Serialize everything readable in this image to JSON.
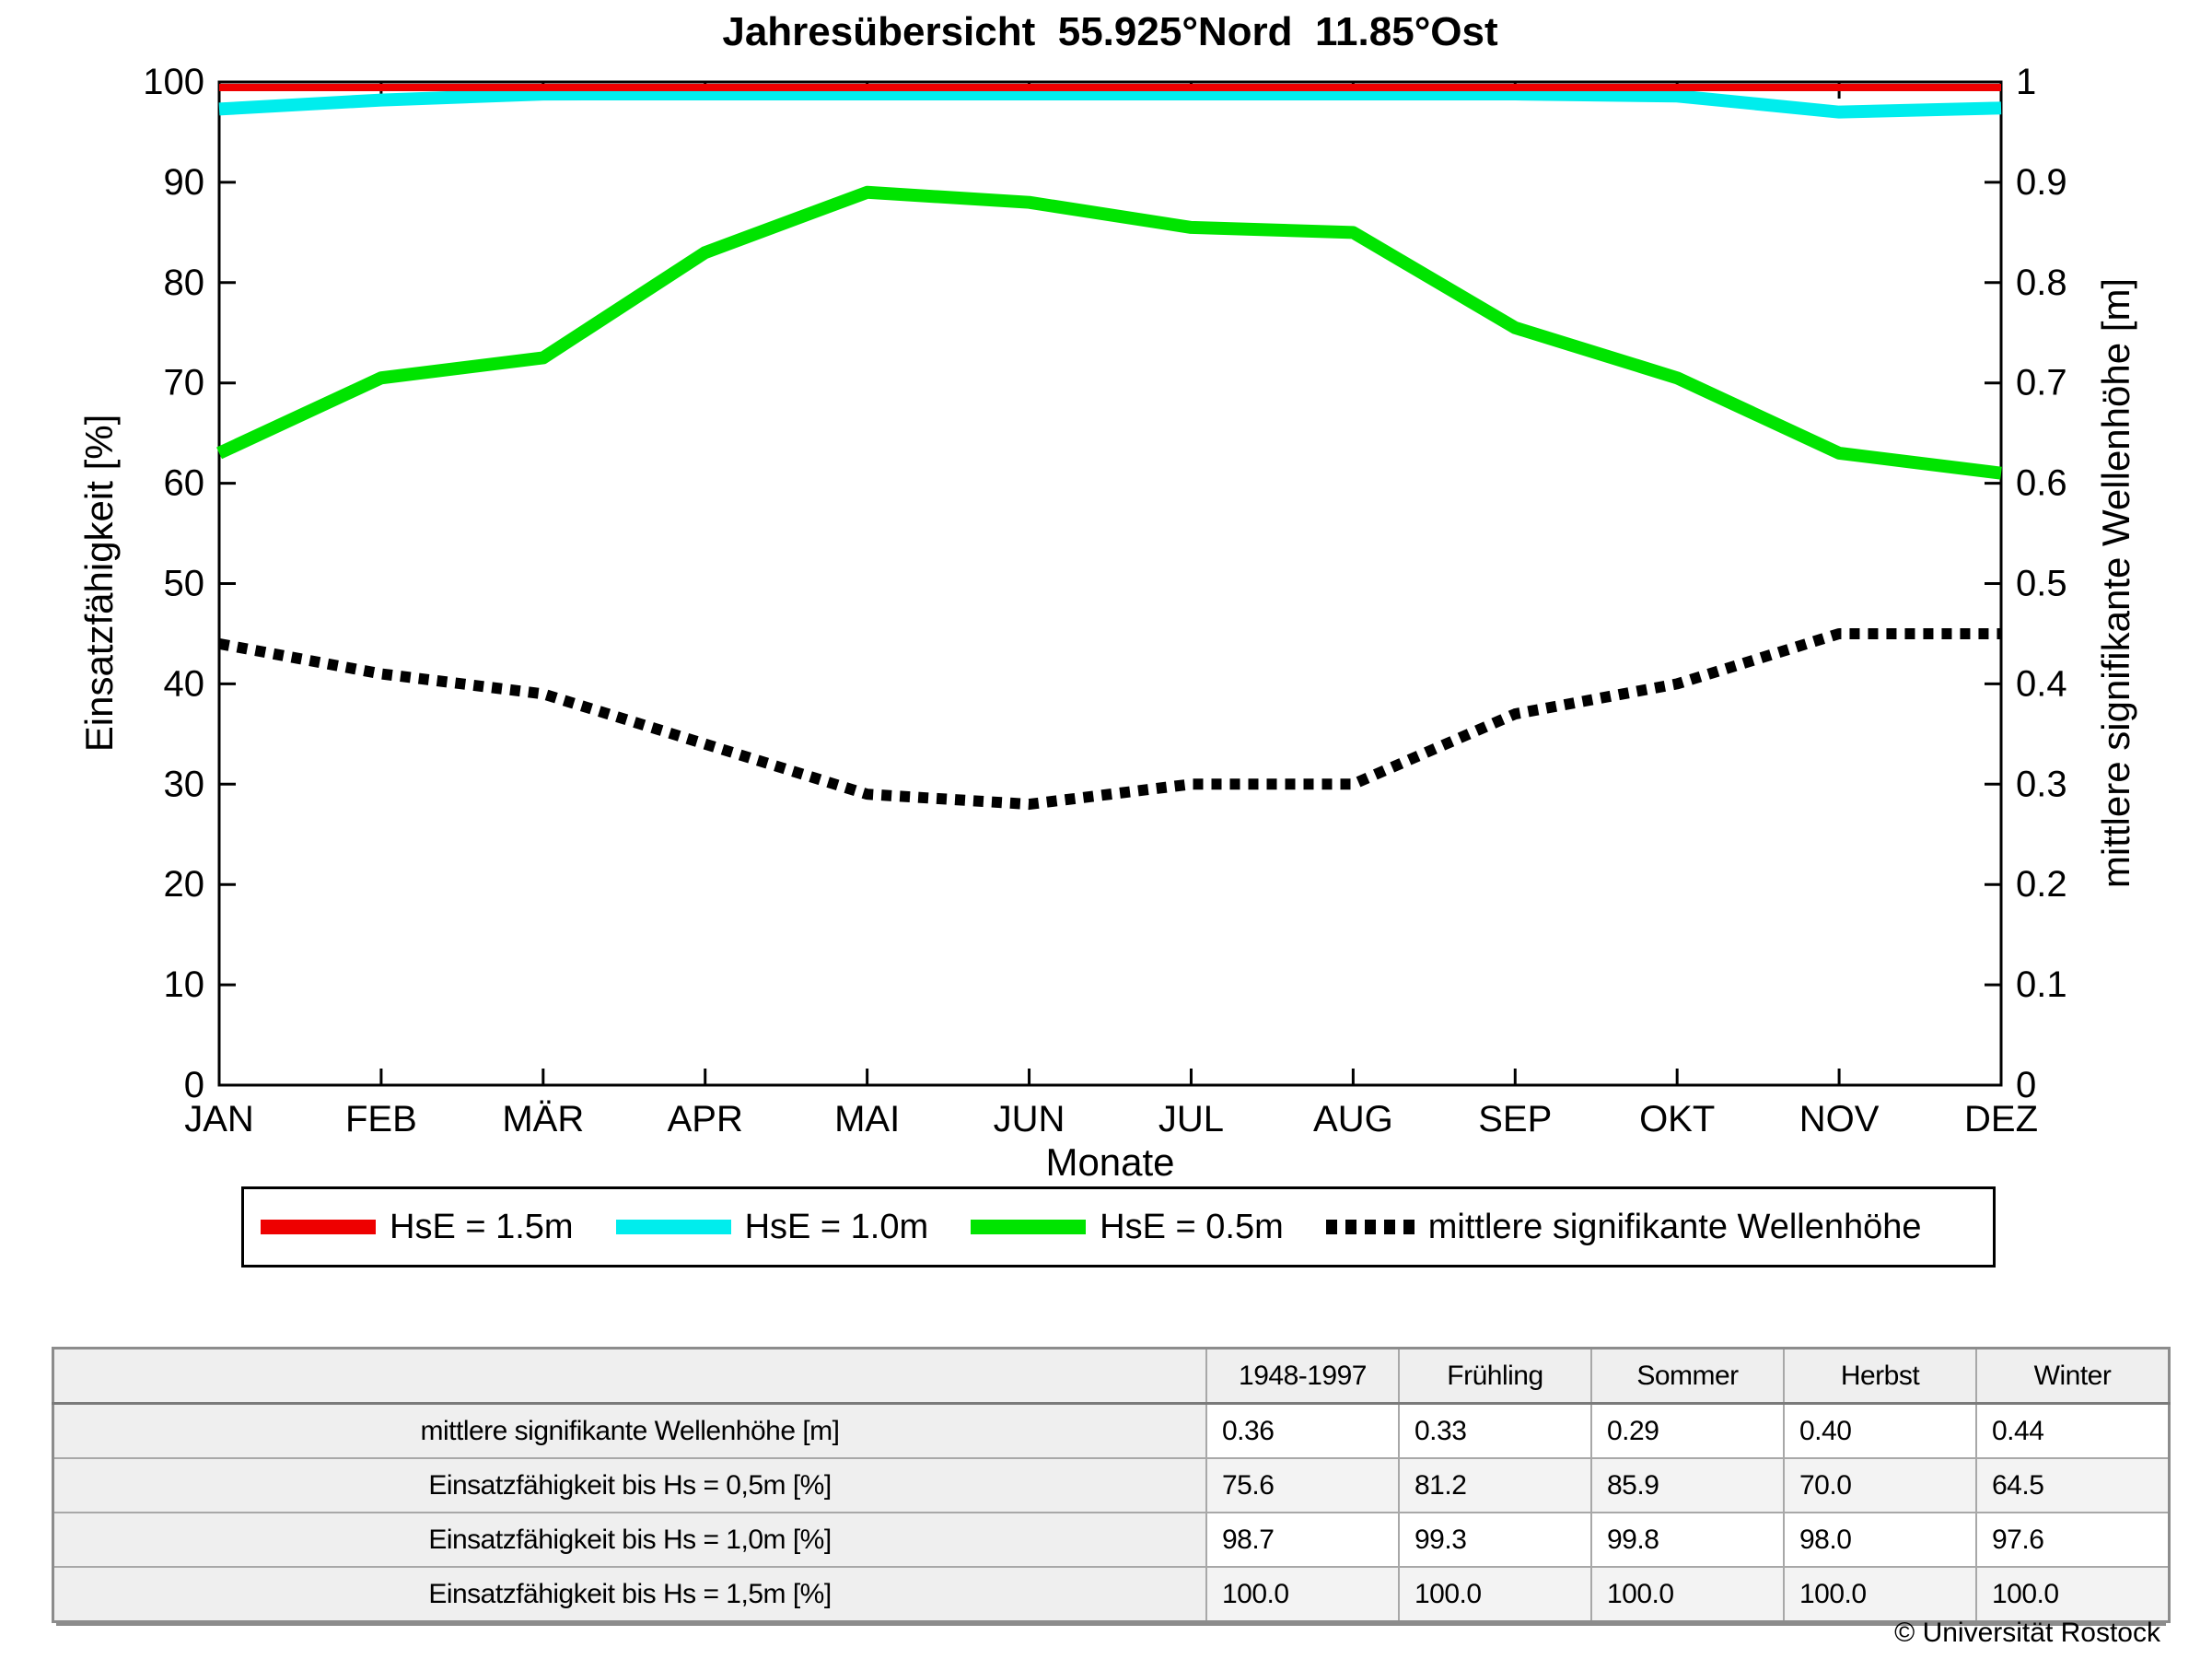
{
  "title": "Jahresübersicht  55.925°Nord  11.85°Ost",
  "chart_data": {
    "type": "line",
    "categories": [
      "JAN",
      "FEB",
      "MÄR",
      "APR",
      "MAI",
      "JUN",
      "JUL",
      "AUG",
      "SEP",
      "OKT",
      "NOV",
      "DEZ"
    ],
    "series": [
      {
        "name": "HsE = 1.5m",
        "color": "#ee0000",
        "style": "solid",
        "axis": "left",
        "values": [
          100,
          100,
          100,
          100,
          100,
          100,
          100,
          100,
          100,
          100,
          100,
          100
        ]
      },
      {
        "name": "HsE = 1.0m",
        "color": "#00eded",
        "style": "solid",
        "axis": "left",
        "values": [
          97.3,
          98.2,
          98.8,
          99.3,
          99.8,
          99.9,
          99.9,
          99.8,
          99.2,
          98.6,
          97.0,
          97.4
        ]
      },
      {
        "name": "HsE = 0.5m",
        "color": "#00e400",
        "style": "solid",
        "axis": "left",
        "values": [
          63.0,
          70.5,
          72.5,
          83.0,
          89.0,
          88.0,
          85.5,
          85.0,
          75.5,
          70.5,
          63.0,
          61.0
        ]
      },
      {
        "name": "mittlere signifikante Wellenhöhe",
        "color": "#000000",
        "style": "dotted",
        "axis": "right",
        "values": [
          0.44,
          0.41,
          0.39,
          0.34,
          0.29,
          0.28,
          0.3,
          0.3,
          0.37,
          0.4,
          0.45,
          0.45
        ]
      }
    ],
    "left_axis": {
      "label": "Einsatzfähigkeit [%]",
      "min": 0,
      "max": 100,
      "tick_step": 10
    },
    "right_axis": {
      "label": "mittlere signifikante Wellenhöhe [m]",
      "min": 0,
      "max": 1,
      "tick_step": 0.1
    },
    "xlabel": "Monate",
    "grid": false,
    "legend_position": "below"
  },
  "table": {
    "column_headers": [
      "1948-1997",
      "Frühling",
      "Sommer",
      "Herbst",
      "Winter"
    ],
    "rows": [
      {
        "label": "mittlere signifikante Wellenhöhe [m]",
        "values": [
          "0.36",
          "0.33",
          "0.29",
          "0.40",
          "0.44"
        ]
      },
      {
        "label": "Einsatzfähigkeit bis Hs = 0,5m [%]",
        "values": [
          "75.6",
          "81.2",
          "85.9",
          "70.0",
          "64.5"
        ]
      },
      {
        "label": "Einsatzfähigkeit bis Hs = 1,0m [%]",
        "values": [
          "98.7",
          "99.3",
          "99.8",
          "98.0",
          "97.6"
        ]
      },
      {
        "label": "Einsatzfähigkeit bis Hs = 1,5m [%]",
        "values": [
          "100.0",
          "100.0",
          "100.0",
          "100.0",
          "100.0"
        ]
      }
    ]
  },
  "footer": {
    "copyright": "© Universität Rostock"
  }
}
